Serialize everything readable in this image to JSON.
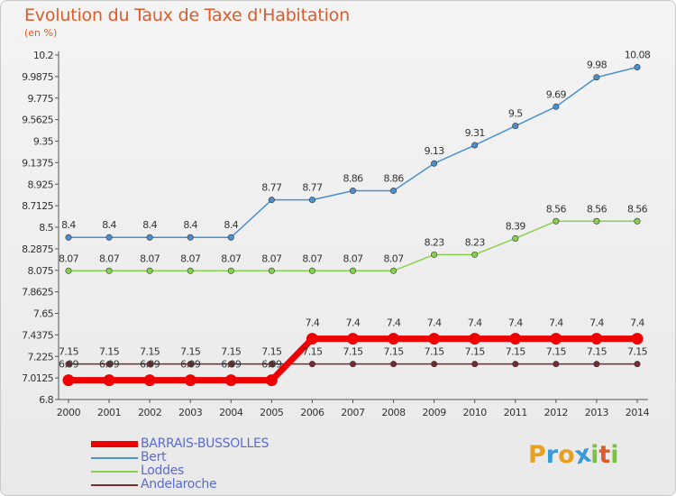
{
  "title": "Evolution du Taux de Taxe d'Habitation",
  "subtitle": "(en %)",
  "brand": {
    "text": "Proxiti",
    "letters": [
      {
        "ch": "P",
        "color": "#e8a020"
      },
      {
        "ch": "r",
        "color": "#3a9ad9"
      },
      {
        "ch": "o",
        "color": "#e8a020"
      },
      {
        "ch": "x",
        "color": "#3a9ad9"
      },
      {
        "ch": "i",
        "color": "#7cc242"
      },
      {
        "ch": "t",
        "color": "#e05a2a"
      },
      {
        "ch": "i",
        "color": "#7cc242"
      }
    ]
  },
  "chart_data": {
    "type": "line",
    "x": [
      "2000",
      "2001",
      "2002",
      "2003",
      "2004",
      "2005",
      "2006",
      "2007",
      "2008",
      "2009",
      "2010",
      "2011",
      "2012",
      "2013",
      "2014"
    ],
    "ylim": [
      6.8,
      10.2
    ],
    "yticks": [
      "6.8",
      "7.0125",
      "7.225",
      "7.4375",
      "7.65",
      "7.8625",
      "8.075",
      "8.2875",
      "8.5",
      "8.7125",
      "8.925",
      "9.1375",
      "9.35",
      "9.5625",
      "9.775",
      "9.9875",
      "10.2"
    ],
    "grid": false,
    "legend_position": "bottom-left",
    "series": [
      {
        "name": "BARRAIS-BUSSOLLES",
        "color": "#ee0000",
        "width": 7,
        "marker": 6.5,
        "labels": true,
        "values": [
          6.99,
          6.99,
          6.99,
          6.99,
          6.99,
          6.99,
          7.4,
          7.4,
          7.4,
          7.4,
          7.4,
          7.4,
          7.4,
          7.4,
          7.4
        ]
      },
      {
        "name": "Bert",
        "color": "#4a90d0",
        "width": 1.5,
        "marker": 3.2,
        "labels": true,
        "values": [
          8.4,
          8.4,
          8.4,
          8.4,
          8.4,
          8.77,
          8.77,
          8.86,
          8.86,
          9.13,
          9.31,
          9.5,
          9.69,
          9.98,
          10.08
        ]
      },
      {
        "name": "Loddes",
        "color": "#88d050",
        "width": 1.5,
        "marker": 3.2,
        "labels": true,
        "values": [
          8.07,
          8.07,
          8.07,
          8.07,
          8.07,
          8.07,
          8.07,
          8.07,
          8.07,
          8.23,
          8.23,
          8.39,
          8.56,
          8.56,
          8.56
        ]
      },
      {
        "name": "Andelaroche",
        "color": "#7a2a2a",
        "width": 1.5,
        "marker": 3.2,
        "labels": true,
        "values": [
          7.15,
          7.15,
          7.15,
          7.15,
          7.15,
          7.15,
          7.15,
          7.15,
          7.15,
          7.15,
          7.15,
          7.15,
          7.15,
          7.15,
          7.15
        ]
      }
    ]
  }
}
